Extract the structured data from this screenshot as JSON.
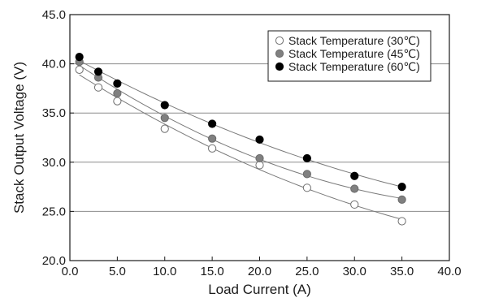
{
  "chart_data": {
    "type": "scatter",
    "title": "",
    "xlabel": "Load Current (A)",
    "ylabel": "Stack Output Voltage (V)",
    "xlim": [
      0,
      40
    ],
    "ylim": [
      20,
      45
    ],
    "x_ticks": [
      "0.0",
      "5.0",
      "10.0",
      "15.0",
      "20.0",
      "25.0",
      "30.0",
      "35.0",
      "40.0"
    ],
    "y_ticks": [
      "20.0",
      "25.0",
      "30.0",
      "35.0",
      "40.0",
      "45.0"
    ],
    "grid": "horizontal",
    "legend_position": "top-right",
    "trendlines": true,
    "series": [
      {
        "name": "Stack Temperature (30℃)",
        "marker": "open-circle",
        "color": "#888888",
        "x": [
          1,
          3,
          5,
          10,
          15,
          20,
          25,
          30,
          35
        ],
        "y": [
          39.4,
          37.6,
          36.2,
          33.4,
          31.4,
          29.7,
          27.4,
          25.7,
          24.0
        ]
      },
      {
        "name": "Stack Temperature (45℃)",
        "marker": "gray-circle",
        "color": "#808080",
        "x": [
          1,
          3,
          5,
          10,
          15,
          20,
          25,
          30,
          35
        ],
        "y": [
          40.2,
          38.6,
          37.0,
          34.5,
          32.4,
          30.4,
          28.8,
          27.3,
          26.2
        ]
      },
      {
        "name": "Stack Temperature (60℃)",
        "marker": "black-circle",
        "color": "#000000",
        "x": [
          1,
          3,
          5,
          10,
          15,
          20,
          25,
          30,
          35
        ],
        "y": [
          40.7,
          39.2,
          38.0,
          35.8,
          33.9,
          32.3,
          30.4,
          28.6,
          27.5
        ]
      }
    ]
  }
}
